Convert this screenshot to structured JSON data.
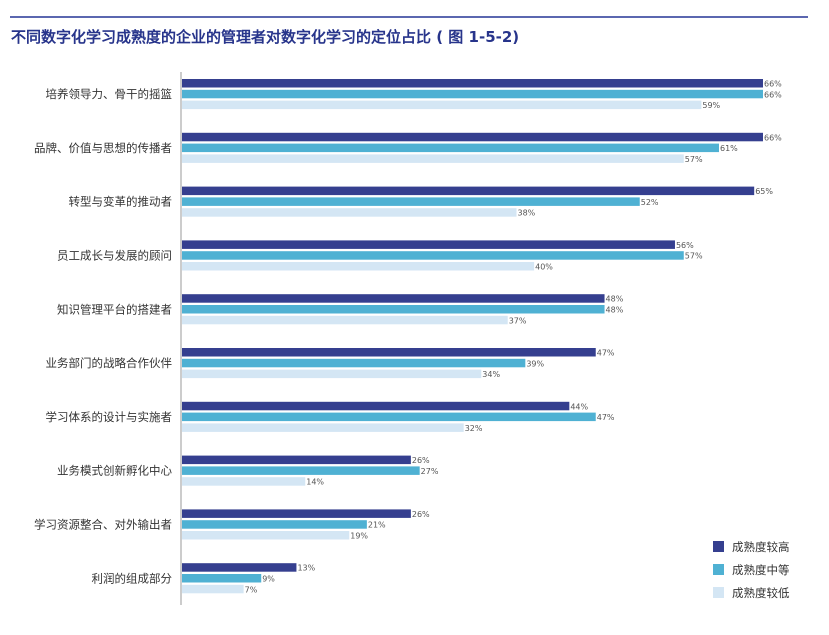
{
  "title": "不同数字化学习成熟度的企业的管理者对数字化学习的定位占比 ( 图 1-5-2)",
  "colors": {
    "high": "#353f8f",
    "mid": "#4fb1d3",
    "low": "#d4e6f4",
    "axis": "#999999",
    "title": "#27348b"
  },
  "chart_data": {
    "type": "bar",
    "orientation": "horizontal",
    "title": "不同数字化学习成熟度的企业的管理者对数字化学习的定位占比 ( 图 1-5-2)",
    "xlim": [
      0,
      66
    ],
    "unit": "%",
    "legend_position": "bottom-right",
    "categories": [
      "培养领导力、骨干的摇篮",
      "品牌、价值与思想的传播者",
      "转型与变革的推动者",
      "员工成长与发展的顾问",
      "知识管理平台的搭建者",
      "业务部门的战略合作伙伴",
      "学习体系的设计与实施者",
      "业务模式创新孵化中心",
      "学习资源整合、对外输出者",
      "利润的组成部分"
    ],
    "series": [
      {
        "name": "成熟度较高",
        "values": [
          66,
          66,
          65,
          56,
          48,
          47,
          44,
          26,
          26,
          13
        ]
      },
      {
        "name": "成熟度中等",
        "values": [
          66,
          61,
          52,
          57,
          48,
          39,
          47,
          27,
          21,
          9
        ]
      },
      {
        "name": "成熟度较低",
        "values": [
          59,
          57,
          38,
          40,
          37,
          34,
          32,
          14,
          19,
          7
        ]
      }
    ]
  }
}
